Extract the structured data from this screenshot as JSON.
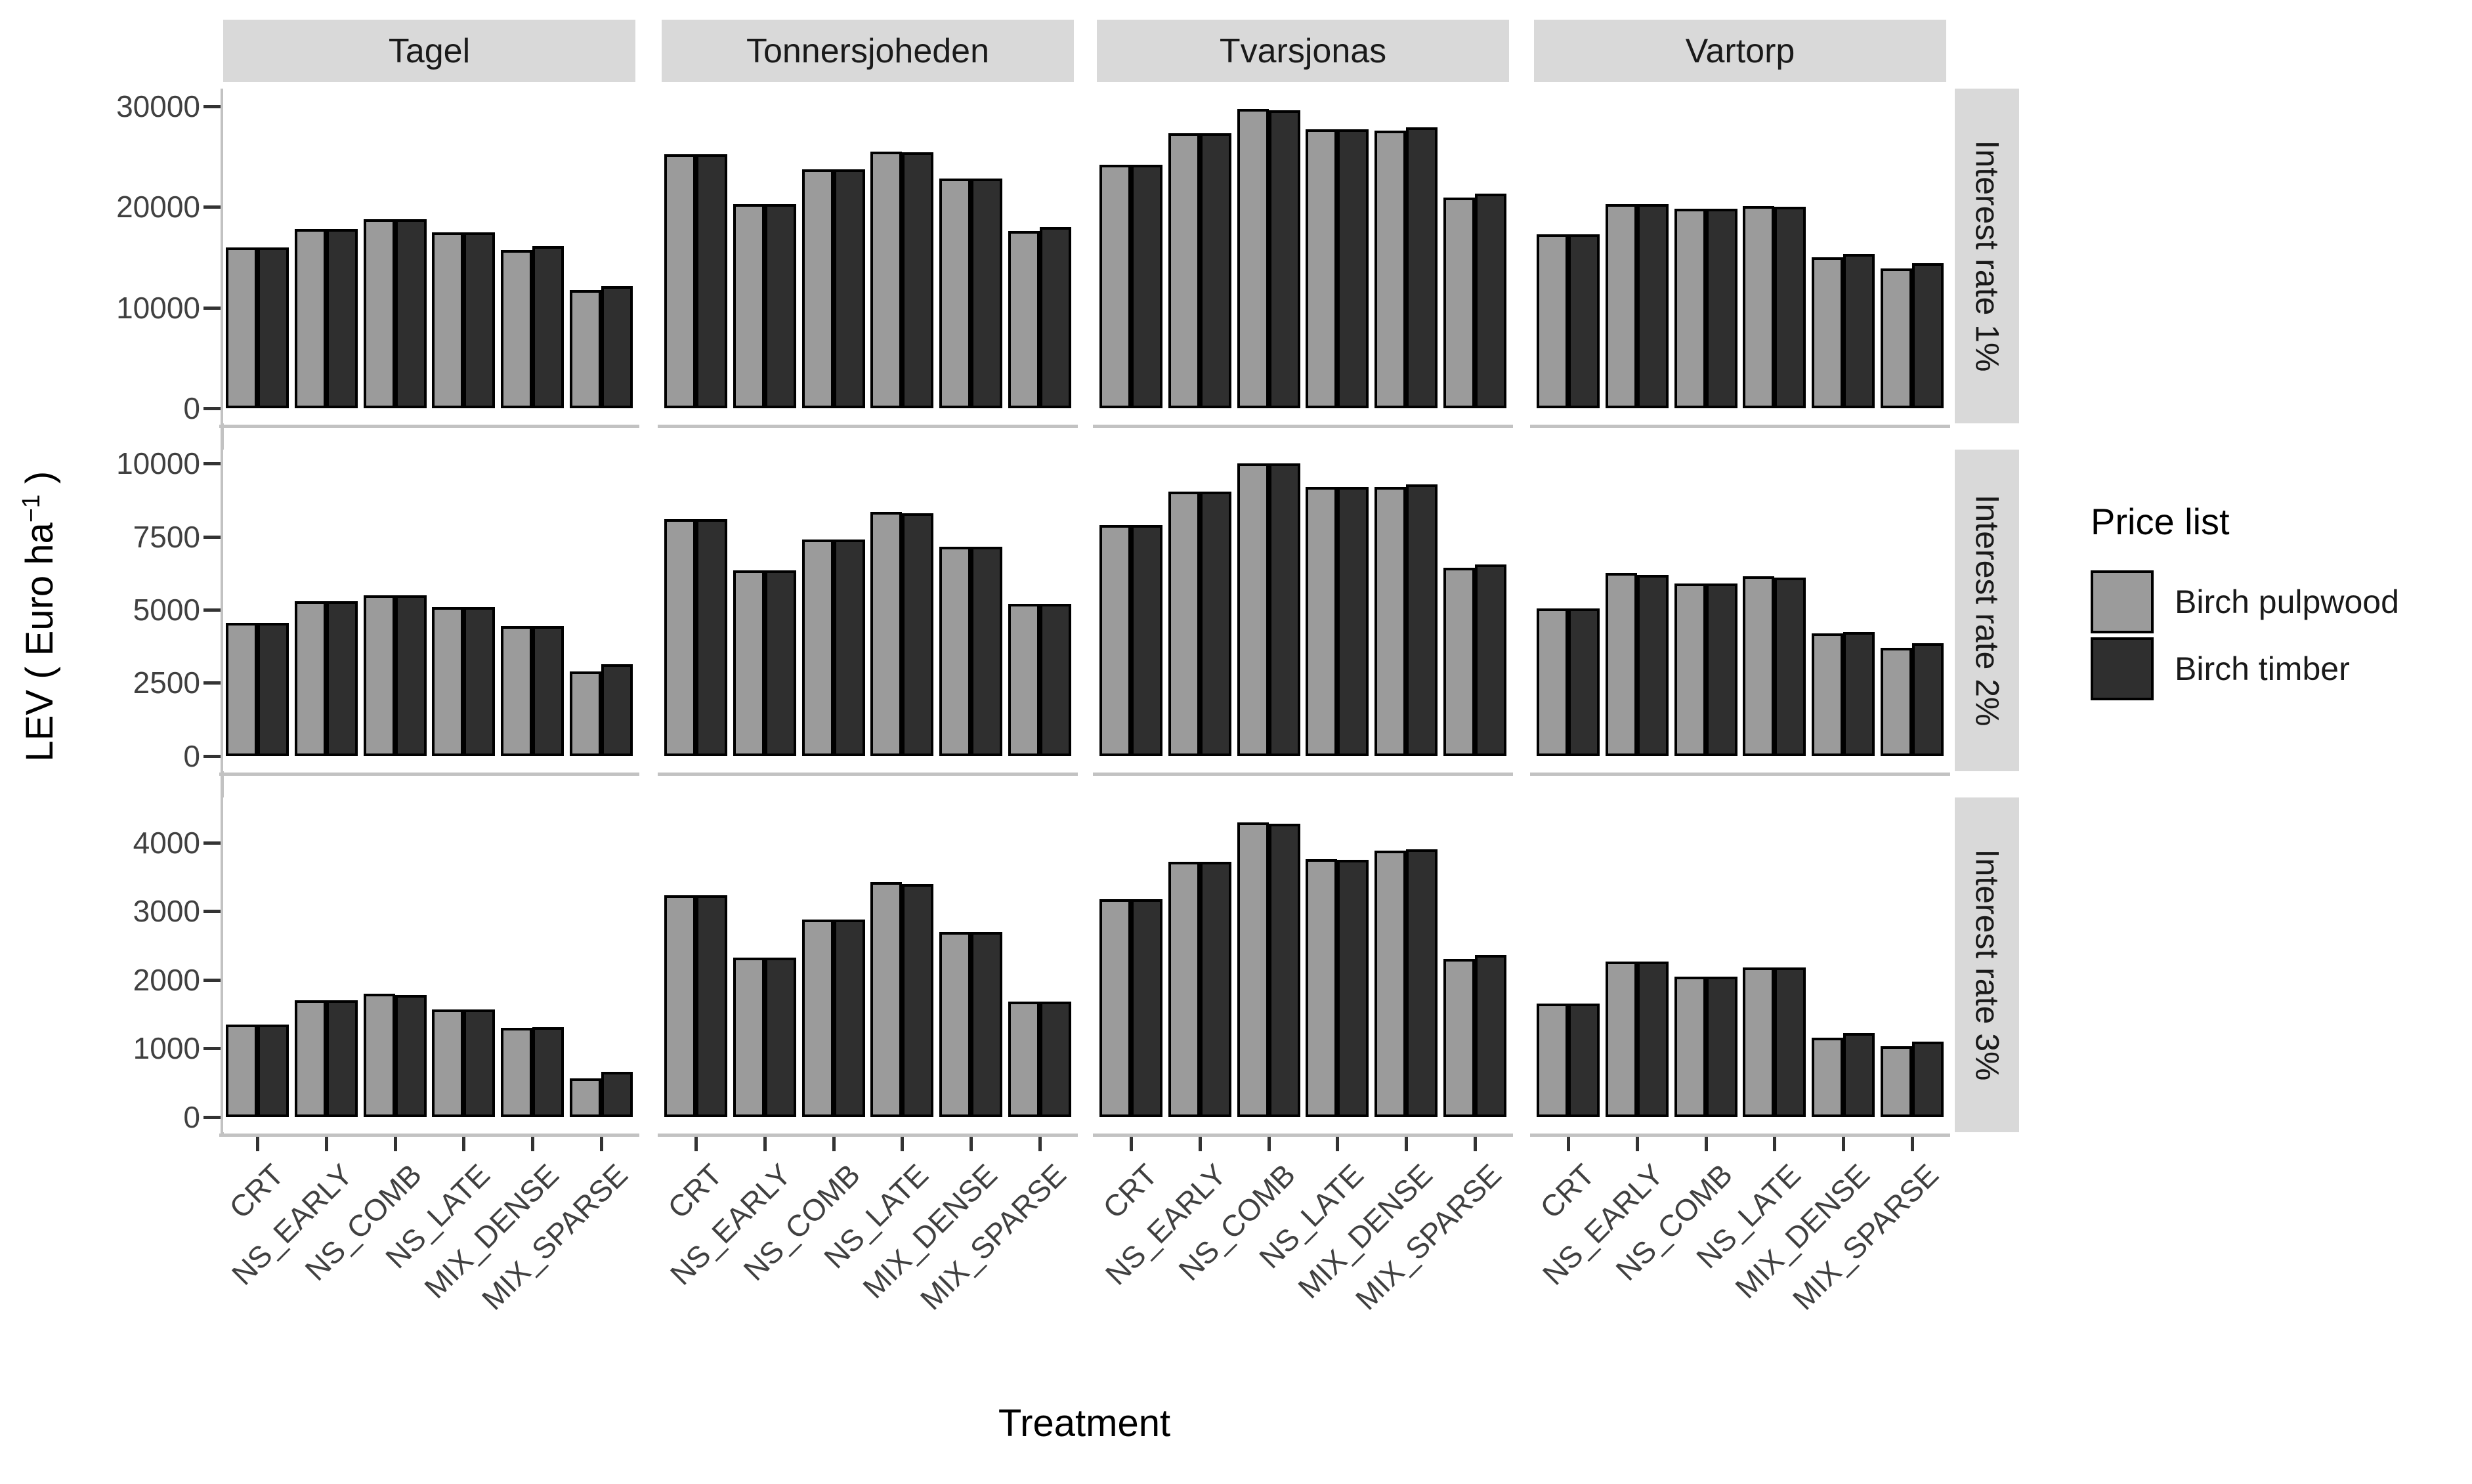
{
  "chart_data": {
    "type": "bar",
    "title": "",
    "xlabel": "Treatment",
    "ylabel": {
      "prefix": "LEV ( Euro ha",
      "exponent": "−1",
      "suffix": " )"
    },
    "grid": false,
    "legend_position": "right",
    "legend": {
      "title": "Price list",
      "entries": [
        {
          "label": "Birch pulpwood",
          "color": "#9b9b9b"
        },
        {
          "label": "Birch timber",
          "color": "#2f2f2f"
        }
      ]
    },
    "facet_columns": [
      "Tagel",
      "Tonnersjoheden",
      "Tvarsjonas",
      "Vartorp"
    ],
    "facet_rows": [
      "Interest rate 1%",
      "Interest rate 2%",
      "Interest rate 3%"
    ],
    "categories": [
      "CRT",
      "NS_EARLY",
      "NS_COMB",
      "NS_LATE",
      "MIX_DENSE",
      "MIX_SPARSE"
    ],
    "series": [
      "Birch pulpwood",
      "Birch timber"
    ],
    "style": {
      "bar_fill_pulpwood": "#9b9b9b",
      "bar_fill_timber": "#2f2f2f",
      "bar_outline": "#000000",
      "strip_background": "#d9d9d9",
      "axis_line_color": "#c2c2c2",
      "tick_color": "#333333",
      "tick_text_color": "#404040"
    },
    "rows": [
      {
        "facet_row_label": "Interest rate 1%",
        "y_ticks": [
          0,
          10000,
          20000,
          30000
        ],
        "y_axis_top": 31750,
        "y_axis_bottom": -1510,
        "panels": [
          {
            "site": "Tagel",
            "pulpwood": [
              16000,
              17800,
              18800,
              17500,
              15700,
              11700
            ],
            "timber": [
              16000,
              17800,
              18800,
              17500,
              16100,
              12100
            ]
          },
          {
            "site": "Tonnersjoheden",
            "pulpwood": [
              25200,
              20300,
              23700,
              25500,
              22800,
              17600
            ],
            "timber": [
              25200,
              20300,
              23700,
              25400,
              22800,
              18000
            ]
          },
          {
            "site": "Tvarsjonas",
            "pulpwood": [
              24200,
              27300,
              29700,
              27700,
              27600,
              20900
            ],
            "timber": [
              24200,
              27300,
              29600,
              27700,
              27900,
              21300
            ]
          },
          {
            "site": "Vartorp",
            "pulpwood": [
              17300,
              20300,
              19800,
              20100,
              15000,
              13900
            ],
            "timber": [
              17300,
              20300,
              19800,
              20000,
              15300,
              14400
            ]
          }
        ]
      },
      {
        "facet_row_label": "Interest rate 2%",
        "y_ticks": [
          0,
          2500,
          5000,
          7500,
          10000
        ],
        "y_axis_top": 10480,
        "y_axis_bottom": -520,
        "panels": [
          {
            "site": "Tagel",
            "pulpwood": [
              4550,
              5300,
              5500,
              5100,
              4450,
              2900
            ],
            "timber": [
              4550,
              5300,
              5500,
              5100,
              4450,
              3150
            ]
          },
          {
            "site": "Tonnersjoheden",
            "pulpwood": [
              8100,
              6350,
              7400,
              8350,
              7150,
              5200
            ],
            "timber": [
              8100,
              6350,
              7400,
              8300,
              7150,
              5200
            ]
          },
          {
            "site": "Tvarsjonas",
            "pulpwood": [
              7900,
              9050,
              10000,
              9200,
              9200,
              6450
            ],
            "timber": [
              7900,
              9050,
              10000,
              9200,
              9300,
              6550
            ]
          },
          {
            "site": "Vartorp",
            "pulpwood": [
              5050,
              6250,
              5900,
              6150,
              4200,
              3700
            ],
            "timber": [
              5050,
              6200,
              5900,
              6100,
              4250,
              3850
            ]
          }
        ]
      },
      {
        "facet_row_label": "Interest rate 3%",
        "y_ticks": [
          0,
          1000,
          2000,
          3000,
          4000
        ],
        "y_axis_top": 4660,
        "y_axis_bottom": -225,
        "panels": [
          {
            "site": "Tagel",
            "pulpwood": [
              1350,
              1700,
              1800,
              1570,
              1300,
              560
            ],
            "timber": [
              1350,
              1700,
              1780,
              1570,
              1310,
              660
            ]
          },
          {
            "site": "Tonnersjoheden",
            "pulpwood": [
              3230,
              2320,
              2880,
              3420,
              2700,
              1680
            ],
            "timber": [
              3230,
              2320,
              2880,
              3400,
              2700,
              1680
            ]
          },
          {
            "site": "Tvarsjonas",
            "pulpwood": [
              3180,
              3720,
              4300,
              3760,
              3880,
              2300
            ],
            "timber": [
              3180,
              3720,
              4280,
              3750,
              3900,
              2360
            ]
          },
          {
            "site": "Vartorp",
            "pulpwood": [
              1650,
              2270,
              2050,
              2180,
              1150,
              1030
            ],
            "timber": [
              1650,
              2270,
              2050,
              2180,
              1220,
              1100
            ]
          }
        ]
      }
    ]
  }
}
